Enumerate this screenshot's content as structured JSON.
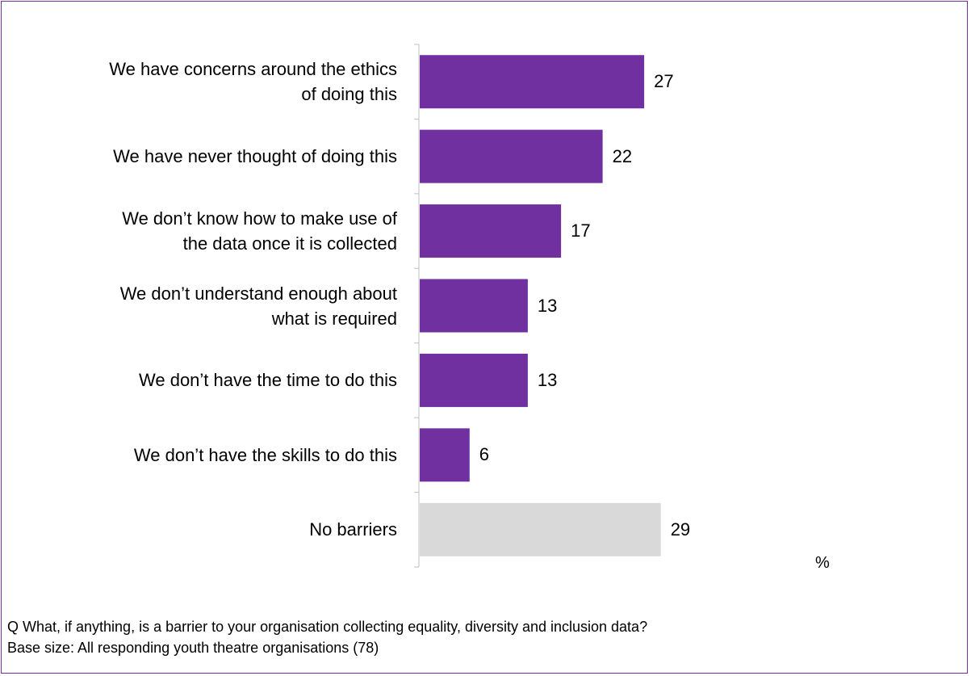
{
  "chart_data": {
    "type": "bar",
    "orientation": "horizontal",
    "categories": [
      "We have concerns around the ethics\nof doing this",
      "We have never thought of doing this",
      "We don’t know how to make use of\nthe data once it is collected",
      "We don’t understand enough about\nwhat is required",
      "We don’t have the time to do this",
      "We don’t have the skills to do this",
      "No barriers"
    ],
    "values": [
      27,
      22,
      17,
      13,
      13,
      6,
      29
    ],
    "colors": [
      "#7030a0",
      "#7030a0",
      "#7030a0",
      "#7030a0",
      "#7030a0",
      "#7030a0",
      "#d9d9d9"
    ],
    "unit_label": "%",
    "xlim": [
      0,
      48
    ]
  },
  "footnote": {
    "question": "Q   What, if anything, is a barrier to your organisation collecting equality, diversity and inclusion data?",
    "base": "Base size: All responding youth theatre organisations (78)"
  },
  "colors": {
    "frame": "#7030a0",
    "bar": "#7030a0",
    "bar_other": "#d9d9d9",
    "axis": "#bfbfbf"
  }
}
